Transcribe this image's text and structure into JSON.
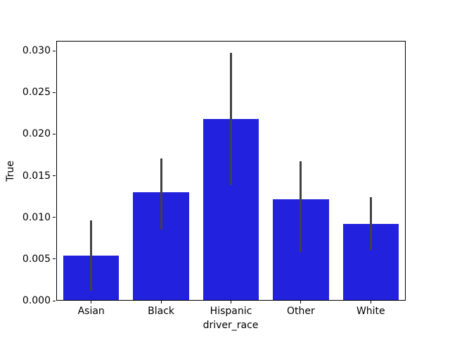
{
  "chart_data": {
    "type": "bar",
    "title": "",
    "xlabel": "driver_race",
    "ylabel": "True",
    "categories": [
      "Asian",
      "Black",
      "Hispanic",
      "Other",
      "White"
    ],
    "values": [
      0.0054,
      0.013,
      0.0218,
      0.0122,
      0.0092
    ],
    "error_bars": [
      {
        "low": 0.0012,
        "high": 0.0096
      },
      {
        "low": 0.0085,
        "high": 0.0171
      },
      {
        "low": 0.0139,
        "high": 0.0298
      },
      {
        "low": 0.0058,
        "high": 0.0167
      },
      {
        "low": 0.0061,
        "high": 0.0124
      }
    ],
    "ylim": [
      0,
      0.0312
    ],
    "yticks": [
      0.0,
      0.005,
      0.01,
      0.015,
      0.02,
      0.025,
      0.03
    ],
    "ytick_labels": [
      "0.000",
      "0.005",
      "0.010",
      "0.015",
      "0.020",
      "0.025",
      "0.030"
    ],
    "bar_color": "#2121DE",
    "error_color": "#424242",
    "axis_color": "#000000",
    "bar_width_fraction": 0.8,
    "grid": false,
    "legend": null
  }
}
